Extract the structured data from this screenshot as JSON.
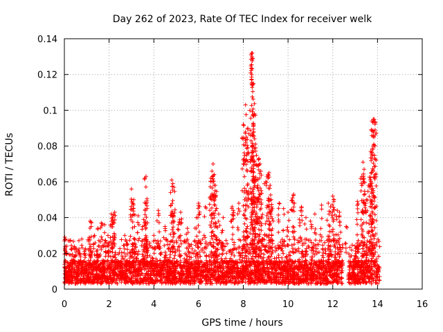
{
  "chart_data": {
    "type": "scatter",
    "title": "Day 262 of 2023, Rate Of TEC Index for receiver welk",
    "xlabel": "GPS time / hours",
    "ylabel": "ROTI / TECUs",
    "xlim": [
      0,
      16
    ],
    "ylim": [
      0,
      0.14
    ],
    "xticks": [
      0,
      2,
      4,
      6,
      8,
      10,
      12,
      14,
      16
    ],
    "xtick_labels": [
      "0",
      "2",
      "4",
      "6",
      "8",
      "10",
      "12",
      "14",
      "16"
    ],
    "yticks": [
      0,
      0.02,
      0.04,
      0.06,
      0.08,
      0.1,
      0.12,
      0.14
    ],
    "ytick_labels": [
      "0",
      "0.02",
      "0.04",
      "0.06",
      "0.08",
      "0.1",
      "0.12",
      "0.14"
    ],
    "grid": true,
    "marker": "+",
    "color": "#ff0000",
    "series": [
      {
        "name": "ROTI",
        "x": [
          0.02,
          0.05,
          0.1,
          0.5,
          0.7,
          0.9,
          1.15,
          1.2,
          1.35,
          1.5,
          1.65,
          1.8,
          1.95,
          2.1,
          2.15,
          2.2,
          2.25,
          2.7,
          3.0,
          3.05,
          3.1,
          3.3,
          3.5,
          3.6,
          3.65,
          3.7,
          4.0,
          4.2,
          4.5,
          4.8,
          4.85,
          4.9,
          5.1,
          5.2,
          5.5,
          5.9,
          6.0,
          6.05,
          6.3,
          6.55,
          6.6,
          6.65,
          6.7,
          6.75,
          6.8,
          6.9,
          7.1,
          7.5,
          7.55,
          7.8,
          8.0,
          8.1,
          8.15,
          8.2,
          8.35,
          8.4,
          8.42,
          8.45,
          8.5,
          8.55,
          8.6,
          8.65,
          8.7,
          8.75,
          8.8,
          9.0,
          9.1,
          9.15,
          9.2,
          9.25,
          9.3,
          9.6,
          9.8,
          10.0,
          10.2,
          10.25,
          10.5,
          10.6,
          10.8,
          11.0,
          11.2,
          11.5,
          11.8,
          11.9,
          12.0,
          12.05,
          12.2,
          12.3,
          12.6,
          13.1,
          13.3,
          13.35,
          13.4,
          13.5,
          13.6,
          13.7,
          13.72,
          13.75,
          13.8,
          13.85,
          13.9
        ],
        "y": [
          0.029,
          0.028,
          0.02,
          0.023,
          0.02,
          0.021,
          0.038,
          0.035,
          0.03,
          0.034,
          0.037,
          0.036,
          0.03,
          0.042,
          0.04,
          0.041,
          0.043,
          0.03,
          0.056,
          0.048,
          0.05,
          0.041,
          0.035,
          0.062,
          0.063,
          0.045,
          0.03,
          0.044,
          0.035,
          0.061,
          0.059,
          0.057,
          0.036,
          0.043,
          0.034,
          0.04,
          0.048,
          0.042,
          0.046,
          0.062,
          0.066,
          0.07,
          0.064,
          0.058,
          0.045,
          0.042,
          0.04,
          0.046,
          0.044,
          0.048,
          0.092,
          0.103,
          0.075,
          0.09,
          0.131,
          0.132,
          0.129,
          0.115,
          0.098,
          0.079,
          0.061,
          0.058,
          0.073,
          0.07,
          0.055,
          0.06,
          0.064,
          0.065,
          0.058,
          0.05,
          0.045,
          0.048,
          0.045,
          0.043,
          0.051,
          0.053,
          0.039,
          0.046,
          0.04,
          0.038,
          0.042,
          0.047,
          0.048,
          0.046,
          0.052,
          0.05,
          0.044,
          0.043,
          0.035,
          0.049,
          0.063,
          0.071,
          0.067,
          0.05,
          0.058,
          0.077,
          0.089,
          0.094,
          0.066,
          0.095,
          0.093
        ]
      }
    ],
    "dense_band": {
      "name": "ROTI bulk",
      "x_segments": [
        [
          0.0,
          12.45
        ],
        [
          12.7,
          14.1
        ]
      ],
      "y_low": 0.003,
      "y_high": 0.028,
      "y_typical": 0.012
    }
  }
}
